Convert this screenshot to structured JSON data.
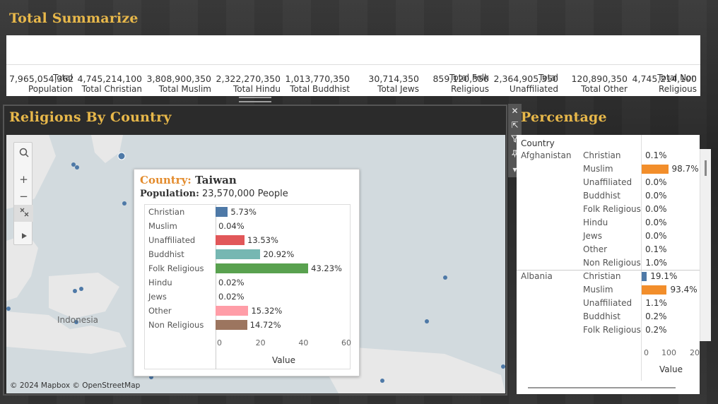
{
  "summary": {
    "title": "Total Summarize",
    "columns": [
      {
        "label": "Total Population",
        "value": "7,965,054,362"
      },
      {
        "label": "Total Christian",
        "value": "4,745,214,100"
      },
      {
        "label": "Total Muslim",
        "value": "3,808,900,350"
      },
      {
        "label": "Total Hindu",
        "value": "2,322,270,350"
      },
      {
        "label": "Total Buddhist",
        "value": "1,013,770,350"
      },
      {
        "label": "Total Jews",
        "value": "30,714,350"
      },
      {
        "label": "Total Folk Religious",
        "value": "859,120,350"
      },
      {
        "label": "Total Unaffiliated",
        "value": "2,364,905,350"
      },
      {
        "label": "Total Other",
        "value": "120,890,350"
      },
      {
        "label": "Total Non Religious",
        "value": "4,745,214,100"
      }
    ]
  },
  "map_panel": {
    "title": "Religions By Country",
    "credit": "© 2024 Mapbox © OpenStreetMap",
    "region_label": "Indonesia",
    "tools": {
      "search": "search-icon",
      "zoom_in": "+",
      "zoom_out": "−",
      "reset": "reset-icon",
      "expand": "play-icon"
    }
  },
  "tooltip": {
    "country_key": "Country:",
    "country_value": "Taiwan",
    "population_key": "Population:",
    "population_value": "23,570,000 People",
    "x_axis_label": "Value",
    "x_ticks": [
      "0",
      "20",
      "40",
      "60"
    ],
    "x_max": 60,
    "rows": [
      {
        "label": "Christian",
        "value": 5.73,
        "text": "5.73%",
        "color": "#4e79a7"
      },
      {
        "label": "Muslim",
        "value": 0.04,
        "text": "0.04%",
        "color": "#f28e2b"
      },
      {
        "label": "Unaffiliated",
        "value": 13.53,
        "text": "13.53%",
        "color": "#e15759"
      },
      {
        "label": "Buddhist",
        "value": 20.92,
        "text": "20.92%",
        "color": "#76b7b2"
      },
      {
        "label": "Folk Religious",
        "value": 43.23,
        "text": "43.23%",
        "color": "#59a14f"
      },
      {
        "label": "Hindu",
        "value": 0.02,
        "text": "0.02%",
        "color": "#edc948"
      },
      {
        "label": "Jews",
        "value": 0.02,
        "text": "0.02%",
        "color": "#b07aa1"
      },
      {
        "label": "Other",
        "value": 15.32,
        "text": "15.32%",
        "color": "#ff9da7"
      },
      {
        "label": "Non Religious",
        "value": 14.72,
        "text": "14.72%",
        "color": "#9c755f"
      }
    ]
  },
  "percentage_panel": {
    "title": "Percentage",
    "column_header": "Country",
    "x_axis_label": "Value",
    "x_ticks": [
      "0",
      "100",
      "20"
    ],
    "bar_color": "#f28e2b",
    "alt_color": "#4e79a7",
    "groups": [
      {
        "country": "Afghanistan",
        "rows": [
          {
            "cat": "Christian",
            "text": "0.1%",
            "value": 0.1
          },
          {
            "cat": "Muslim",
            "text": "98.7%",
            "value": 98.7
          },
          {
            "cat": "Unaffiliated",
            "text": "0.0%",
            "value": 0.0
          },
          {
            "cat": "Buddhist",
            "text": "0.0%",
            "value": 0.0
          },
          {
            "cat": "Folk Religious",
            "text": "0.0%",
            "value": 0.0
          },
          {
            "cat": "Hindu",
            "text": "0.0%",
            "value": 0.0
          },
          {
            "cat": "Jews",
            "text": "0.0%",
            "value": 0.0
          },
          {
            "cat": "Other",
            "text": "0.1%",
            "value": 0.1
          },
          {
            "cat": "Non Religious",
            "text": "1.0%",
            "value": 1.0
          }
        ]
      },
      {
        "country": "Albania",
        "rows": [
          {
            "cat": "Christian",
            "text": "19.1%",
            "value": 19.1
          },
          {
            "cat": "Muslim",
            "text": "93.4%",
            "value": 93.4
          },
          {
            "cat": "Unaffiliated",
            "text": "1.1%",
            "value": 1.1
          },
          {
            "cat": "Buddhist",
            "text": "0.2%",
            "value": 0.2
          },
          {
            "cat": "Folk Religious",
            "text": "0.2%",
            "value": 0.2
          }
        ]
      }
    ]
  },
  "toolbar": [
    "close-icon",
    "popout-icon",
    "filter-icon",
    "pin-icon",
    "more-icon"
  ]
}
